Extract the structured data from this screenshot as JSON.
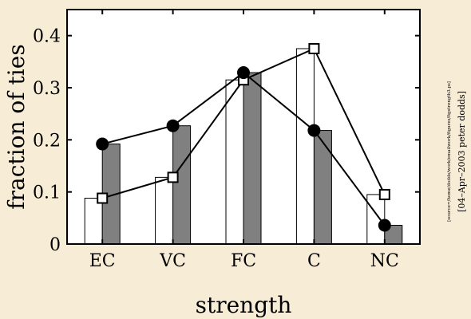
{
  "chart_data": {
    "type": "bar",
    "xlabel": "strength",
    "ylabel": "fraction of ties",
    "categories": [
      "EC",
      "VC",
      "FC",
      "C",
      "NC"
    ],
    "ylim": [
      0,
      0.45
    ],
    "yticks": [
      0,
      0.1,
      0.2,
      0.3,
      0.4
    ],
    "ytick_labels": [
      "0",
      "0.1",
      "0.2",
      "0.3",
      "0.4"
    ],
    "series": [
      {
        "kind": "bar",
        "color": "#ffffff",
        "values": [
          0.088,
          0.128,
          0.315,
          0.375,
          0.095
        ]
      },
      {
        "kind": "bar",
        "color": "#808080",
        "values": [
          0.192,
          0.227,
          0.329,
          0.218,
          0.036
        ]
      },
      {
        "kind": "line",
        "marker": "open-square",
        "color": "#000000",
        "values": [
          0.088,
          0.128,
          0.315,
          0.375,
          0.095
        ]
      },
      {
        "kind": "line",
        "marker": "filled-circle",
        "color": "#000000",
        "values": [
          0.192,
          0.227,
          0.329,
          0.218,
          0.036
        ]
      }
    ],
    "grid": false,
    "legend": "none"
  },
  "side_notes": {
    "source_path": "[source=/home/dodds/work/emailwork/figures/figstrength3.ps]",
    "date_credit": "[04–Apr–2003 peter dodds]"
  }
}
